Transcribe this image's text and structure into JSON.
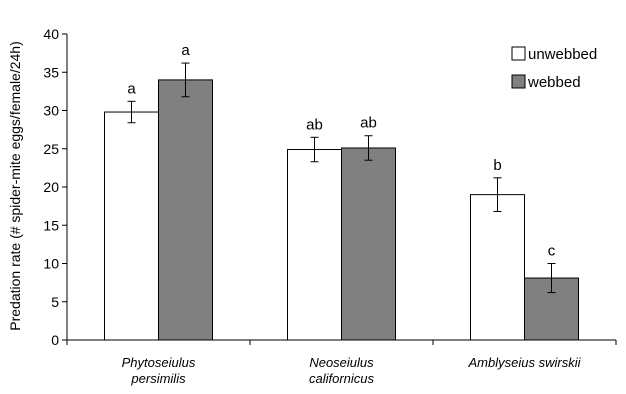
{
  "chart_data": {
    "type": "bar",
    "ylabel": "Predation rate (# spider-mite eggs/female/24h)",
    "ylim": [
      0,
      40
    ],
    "yticks": [
      0,
      5,
      10,
      15,
      20,
      25,
      30,
      35,
      40
    ],
    "categories": [
      [
        "Phytoseiulus",
        "persimilis"
      ],
      [
        "Neoseiulus",
        "californicus"
      ],
      [
        "Amblyseius swirskii"
      ]
    ],
    "series": [
      {
        "name": "unwebbed",
        "color": "#ffffff",
        "values": [
          29.8,
          24.9,
          19.0
        ],
        "errors": [
          1.4,
          1.6,
          2.2
        ],
        "letters": [
          "a",
          "ab",
          "b"
        ]
      },
      {
        "name": "webbed",
        "color": "#808080",
        "values": [
          34.0,
          25.1,
          8.1
        ],
        "errors": [
          2.2,
          1.6,
          1.9
        ],
        "letters": [
          "a",
          "ab",
          "c"
        ]
      }
    ],
    "legend_position": "top-right",
    "grid": false
  }
}
